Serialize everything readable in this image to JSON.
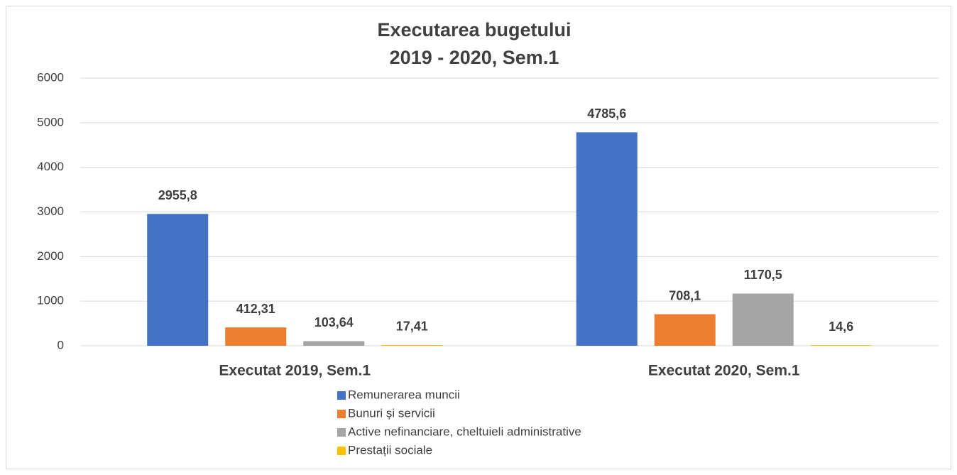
{
  "chart_data": {
    "type": "bar",
    "title": [
      "Executarea bugetului",
      "2019 - 2020, Sem.1"
    ],
    "categories": [
      "Executat 2019, Sem.1",
      "Executat 2020, Sem.1"
    ],
    "series": [
      {
        "name": "Remunerarea muncii",
        "color": "#4472c4",
        "values": [
          2955.8,
          4785.6
        ],
        "value_labels": [
          "2955,8",
          "4785,6"
        ]
      },
      {
        "name": "Bunuri și servicii",
        "color": "#ed7d31",
        "values": [
          412.31,
          708.1
        ],
        "value_labels": [
          "412,31",
          "708,1"
        ]
      },
      {
        "name": "Active nefinanciare, cheltuieli administrative",
        "color": "#a5a5a5",
        "values": [
          103.64,
          1170.5
        ],
        "value_labels": [
          "103,64",
          "1170,5"
        ]
      },
      {
        "name": "Prestații sociale",
        "color": "#ffc000",
        "values": [
          17.41,
          14.6
        ],
        "value_labels": [
          "17,41",
          "14,6"
        ]
      }
    ],
    "ylim": [
      0,
      6000
    ],
    "yticks": [
      0,
      1000,
      2000,
      3000,
      4000,
      5000,
      6000
    ],
    "grid": true,
    "legend": "bottom"
  }
}
